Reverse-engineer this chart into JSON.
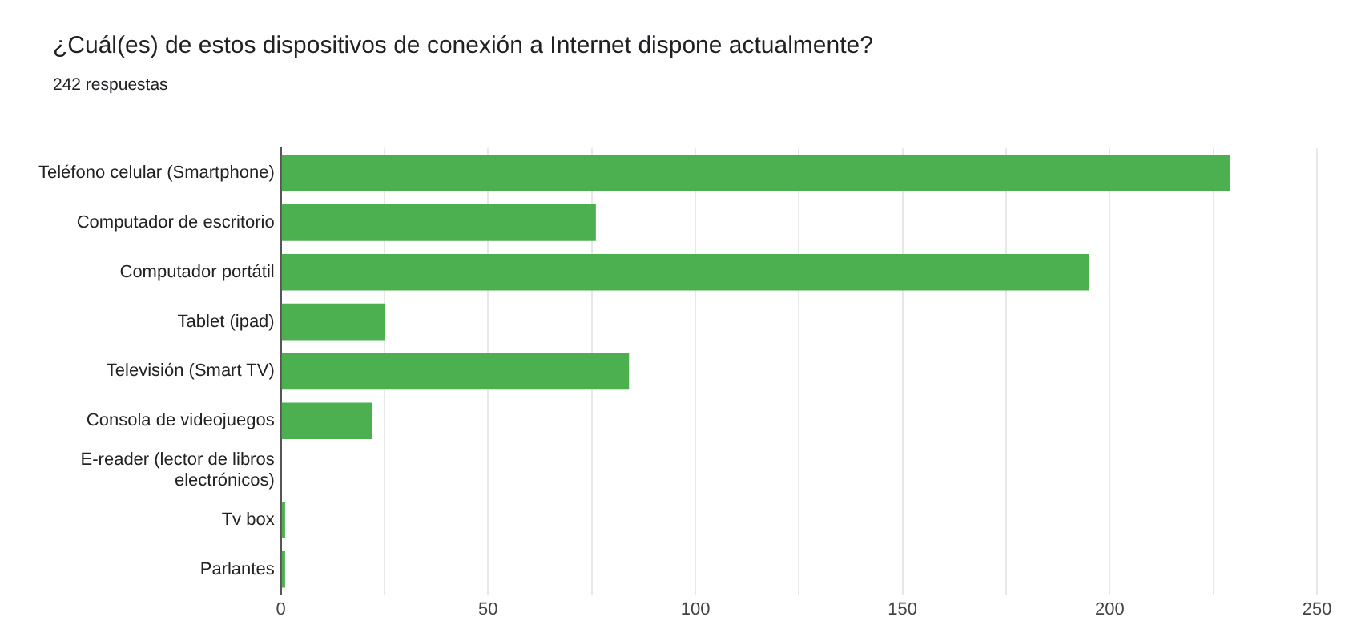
{
  "chart_data": {
    "type": "bar",
    "orientation": "horizontal",
    "title": "¿Cuál(es) de estos dispositivos de conexión a Internet dispone actualmente?",
    "subtitle": "242 respuestas",
    "categories": [
      "Teléfono celular (Smartphone)",
      "Computador de escritorio",
      "Computador portátil",
      "Tablet (ipad)",
      "Televisión (Smart TV)",
      "Consola de videojuegos",
      "E-reader (lector de libros electrónicos)",
      "Tv box",
      "Parlantes"
    ],
    "values": [
      229,
      76,
      195,
      25,
      84,
      22,
      0,
      1,
      1
    ],
    "color": "#4caf50",
    "xlim": [
      0,
      250
    ],
    "xticks": [
      0,
      {
        "value": 25,
        "label": null
      },
      50,
      {
        "value": 75,
        "label": null
      },
      100,
      {
        "value": 125,
        "label": null
      },
      150,
      {
        "value": 175,
        "label": null
      },
      200,
      {
        "value": 225,
        "label": null
      },
      250
    ],
    "grid": "x",
    "legend": false
  }
}
